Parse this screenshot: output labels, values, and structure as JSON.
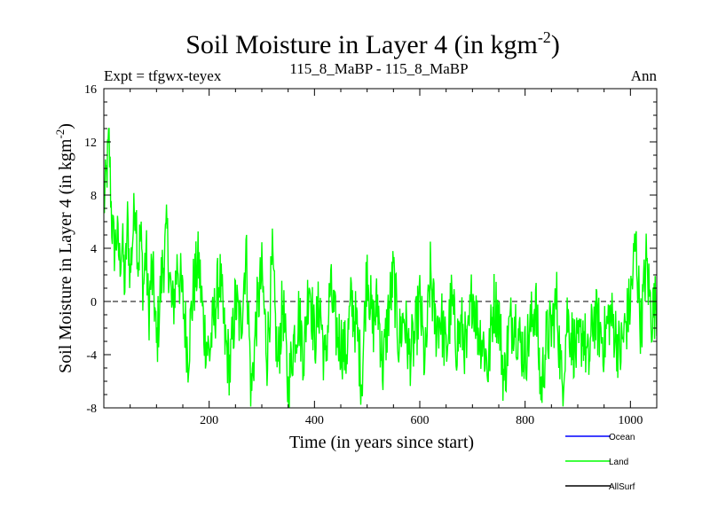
{
  "chart_data": {
    "type": "line",
    "title": "Soil Moisture in Layer 4 (in kgm",
    "title_sup": "-2",
    "title_close": ")",
    "subtitle_left": "Expt = tfgwx-teyex",
    "subtitle_center": "115_8_MaBP - 115_8_MaBP",
    "subtitle_right": "Ann",
    "xlabel": "Time (in years since start)",
    "ylabel": "Soil Moisture in Layer 4 (in kgm",
    "ylabel_sup": "-2",
    "ylabel_close": ")",
    "xlim": [
      0,
      1050
    ],
    "ylim": [
      -8,
      16
    ],
    "xticks": [
      200,
      400,
      600,
      800,
      1000
    ],
    "yticks": [
      -8,
      -4,
      0,
      4,
      8,
      12,
      16
    ],
    "reference_line": 0,
    "series": [
      {
        "name": "Ocean",
        "color": "#0000ff",
        "values": []
      },
      {
        "name": "Land",
        "color": "#00ff00",
        "x": [
          0,
          5,
          10,
          15,
          20,
          25,
          30,
          35,
          40,
          45,
          50,
          55,
          60,
          65,
          70,
          75,
          80,
          85,
          90,
          95,
          100,
          110,
          120,
          130,
          140,
          150,
          160,
          170,
          180,
          190,
          200,
          210,
          220,
          230,
          240,
          250,
          260,
          270,
          280,
          290,
          300,
          310,
          320,
          330,
          340,
          350,
          360,
          370,
          380,
          390,
          400,
          410,
          420,
          430,
          440,
          450,
          460,
          470,
          480,
          490,
          500,
          510,
          520,
          530,
          540,
          550,
          560,
          570,
          580,
          590,
          600,
          610,
          620,
          630,
          640,
          650,
          660,
          670,
          680,
          690,
          700,
          710,
          720,
          730,
          740,
          750,
          760,
          770,
          780,
          790,
          800,
          810,
          820,
          830,
          840,
          850,
          860,
          870,
          880,
          890,
          900,
          910,
          920,
          930,
          940,
          950,
          960,
          970,
          980,
          990,
          1000,
          1010,
          1020,
          1030,
          1040,
          1050
        ],
        "values": [
          7,
          9.5,
          12,
          6,
          4,
          5,
          3,
          4.5,
          1,
          6,
          2,
          5,
          8,
          3,
          5,
          1,
          4,
          -1,
          2,
          1,
          -3.5,
          2,
          5,
          -1,
          3,
          0,
          -4,
          1,
          3,
          -2,
          -4,
          -1,
          2,
          -3,
          -5,
          0,
          -2,
          4,
          -7,
          -1,
          2,
          -4,
          3,
          -5,
          0,
          -6.8,
          -3,
          -1,
          -4,
          2,
          -3,
          0,
          -5,
          1,
          -2,
          -3,
          -4,
          0,
          -2,
          -6,
          3,
          -2,
          0,
          -5,
          -1,
          2,
          -3,
          -1,
          -4,
          -3,
          0,
          -5,
          2,
          -2,
          -1,
          -4,
          0,
          -3,
          -2,
          -4,
          1,
          -2,
          -3,
          -5,
          0,
          -1,
          -6,
          -2,
          -1,
          -3,
          -4,
          -2,
          0,
          -6.8,
          -3,
          -2,
          0,
          -6.5,
          -1,
          -3,
          -4,
          -2,
          -5,
          -1,
          -2,
          -3,
          -1,
          -2,
          -4,
          -2,
          0,
          4.5,
          -2,
          3,
          -1,
          0
        ]
      },
      {
        "name": "AllSurf",
        "color": "#000000",
        "values": []
      }
    ],
    "legend_placement": "bottom-right"
  }
}
